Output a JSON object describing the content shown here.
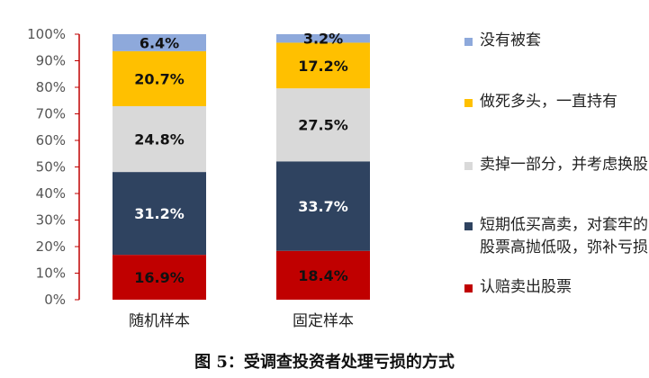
{
  "chart_data": {
    "type": "bar",
    "stacked": true,
    "caption": "图 5：受调查投资者处理亏损的方式",
    "categories": [
      "随机样本",
      "固定样本"
    ],
    "ylim": [
      0,
      100
    ],
    "yticks": [
      "0%",
      "10%",
      "20%",
      "30%",
      "40%",
      "50%",
      "60%",
      "70%",
      "80%",
      "90%",
      "100%"
    ],
    "legend_position": "right",
    "series": [
      {
        "name": "认赔卖出股票",
        "values": [
          16.9,
          18.4
        ],
        "labels": [
          "16.9%",
          "18.4%"
        ],
        "color": "#C00000",
        "label_color": "#111111"
      },
      {
        "name": "短期低买高卖，对套牢的股票高抛低吸，弥补亏损",
        "values": [
          31.2,
          33.7
        ],
        "labels": [
          "31.2%",
          "33.7%"
        ],
        "color": "#2F4360",
        "label_color": "#ffffff"
      },
      {
        "name": "卖掉一部分，并考虑换股",
        "values": [
          24.8,
          27.5
        ],
        "labels": [
          "24.8%",
          "27.5%"
        ],
        "color": "#D9D9D9",
        "label_color": "#111111"
      },
      {
        "name": "做死多头，一直持有",
        "values": [
          20.7,
          17.2
        ],
        "labels": [
          "20.7%",
          "17.2%"
        ],
        "color": "#FFC000",
        "label_color": "#111111"
      },
      {
        "name": "没有被套",
        "values": [
          6.4,
          3.2
        ],
        "labels": [
          "6.4%",
          "3.2%"
        ],
        "color": "#8EA9DB",
        "label_color": "#111111"
      }
    ]
  }
}
